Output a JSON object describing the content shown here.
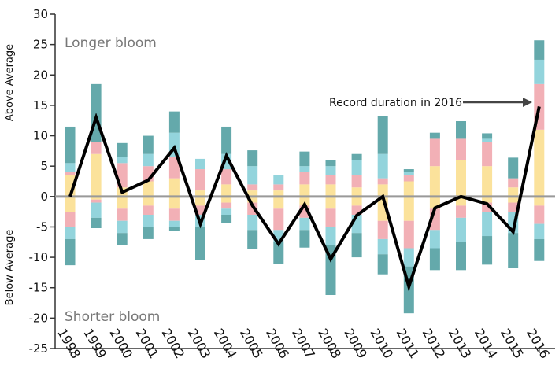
{
  "chart_data": {
    "type": "stacked-bar-line",
    "above_label": "Above Average",
    "below_label": "Below Average",
    "annotations": [
      "Longer bloom",
      "Shorter bloom",
      "Record duration in 2016"
    ],
    "categories": [
      "1998",
      "1999",
      "2000",
      "2001",
      "2002",
      "2003",
      "2004",
      "2005",
      "2006",
      "2007",
      "2008",
      "2009",
      "2010",
      "2011",
      "2012",
      "2013",
      "2014",
      "2015",
      "2016"
    ],
    "ylim": [
      -25,
      30
    ],
    "yticks": [
      -25,
      -20,
      -15,
      -10,
      -5,
      0,
      5,
      10,
      15,
      20,
      25,
      30
    ],
    "series": [
      {
        "color": "#fbe29b",
        "values": [
          3.5,
          7,
          1.5,
          2.5,
          3,
          1,
          2,
          1,
          1,
          2,
          2,
          1.5,
          2,
          2.5,
          5,
          6,
          5,
          1.5,
          11
        ]
      },
      {
        "color": "#f2b0b6",
        "values": [
          0.5,
          2,
          4,
          2.5,
          3.5,
          3.5,
          2.5,
          1,
          1,
          2,
          1.5,
          2,
          1,
          1,
          4.5,
          3.5,
          4,
          1.5,
          7.5
        ]
      },
      {
        "color": "#93d4dc",
        "values": [
          1.5,
          0,
          1,
          2,
          4,
          1.7,
          2.5,
          3,
          1.6,
          1,
          1.5,
          2.5,
          4,
          0.5,
          0,
          0,
          0.5,
          0,
          4
        ]
      },
      {
        "color": "#64a9ab",
        "values": [
          6,
          9.5,
          2.3,
          3,
          3.5,
          0,
          4.5,
          2.6,
          0,
          2.4,
          1,
          1,
          6.2,
          0.5,
          1,
          2.9,
          0.9,
          3.4,
          3.2
        ]
      },
      {
        "color": "#fbe29b",
        "values": [
          -2.5,
          -0.5,
          -2,
          -1.5,
          -2,
          -1.5,
          -1,
          -1,
          -2,
          -1.5,
          -2,
          -1.5,
          -4,
          -4,
          -2,
          -1.5,
          -1,
          -1,
          -1.5
        ]
      },
      {
        "color": "#f2b0b6",
        "values": [
          -2.5,
          -0.5,
          -2,
          -1.5,
          -2,
          -1.5,
          -1,
          -2,
          -3.5,
          -2,
          -3,
          -1.5,
          -3,
          -4.5,
          -3.5,
          -2,
          -1.5,
          -1.5,
          -3
        ]
      },
      {
        "color": "#93d4dc",
        "values": [
          -2,
          -2.5,
          -2,
          -2,
          -1,
          -2,
          -1,
          -2.5,
          -2,
          -2,
          -3,
          -3,
          -2.5,
          -3,
          -3,
          -4,
          -4,
          -3.5,
          -2.5
        ]
      },
      {
        "color": "#64a9ab",
        "values": [
          -4.3,
          -1.7,
          -2,
          -2,
          -0.7,
          -5.5,
          -1.3,
          -3.1,
          -3.6,
          -2.9,
          -8.2,
          -4,
          -3.3,
          -7.7,
          -3.6,
          -4.6,
          -4.7,
          -5.8,
          -3.6
        ]
      }
    ],
    "line": {
      "color": "#000000",
      "values": [
        0,
        13,
        0.7,
        2.7,
        8,
        -4.5,
        6.7,
        -1.5,
        -7.8,
        -1.3,
        -10.3,
        -3.1,
        0,
        -14.8,
        -1.9,
        0,
        -1.2,
        -5.8,
        14.8
      ]
    }
  }
}
